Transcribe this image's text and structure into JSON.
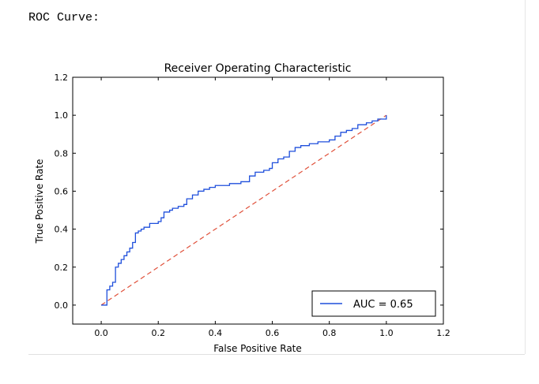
{
  "output": {
    "label": "ROC Curve:"
  },
  "chart_data": {
    "type": "line",
    "title": "Receiver Operating Characteristic",
    "xlabel": "False Positive Rate",
    "ylabel": "True Positive Rate",
    "xlim": [
      -0.1,
      1.2
    ],
    "ylim": [
      -0.1,
      1.2
    ],
    "x_ticks": [
      "0.0",
      "0.2",
      "0.4",
      "0.6",
      "0.8",
      "1.0",
      "1.2"
    ],
    "y_ticks": [
      "0.0",
      "0.2",
      "0.4",
      "0.6",
      "0.8",
      "1.0",
      "1.2"
    ],
    "legend_position": "bottom-right",
    "grid": false,
    "series": [
      {
        "name": "AUC = 0.65",
        "color": "#1f4fdc",
        "style": "solid",
        "x": [
          0.0,
          0.02,
          0.02,
          0.03,
          0.03,
          0.04,
          0.05,
          0.05,
          0.06,
          0.07,
          0.08,
          0.09,
          0.1,
          0.11,
          0.12,
          0.13,
          0.14,
          0.15,
          0.17,
          0.18,
          0.2,
          0.21,
          0.22,
          0.24,
          0.25,
          0.27,
          0.29,
          0.3,
          0.32,
          0.34,
          0.36,
          0.38,
          0.4,
          0.42,
          0.45,
          0.47,
          0.49,
          0.5,
          0.52,
          0.54,
          0.56,
          0.57,
          0.59,
          0.6,
          0.62,
          0.64,
          0.66,
          0.68,
          0.7,
          0.73,
          0.76,
          0.78,
          0.8,
          0.82,
          0.84,
          0.86,
          0.88,
          0.9,
          0.93,
          0.95,
          0.97,
          1.0
        ],
        "y": [
          0.0,
          0.03,
          0.08,
          0.09,
          0.1,
          0.12,
          0.15,
          0.2,
          0.22,
          0.24,
          0.26,
          0.28,
          0.3,
          0.33,
          0.38,
          0.39,
          0.4,
          0.41,
          0.43,
          0.43,
          0.44,
          0.46,
          0.49,
          0.5,
          0.51,
          0.52,
          0.53,
          0.56,
          0.58,
          0.6,
          0.61,
          0.62,
          0.63,
          0.63,
          0.64,
          0.64,
          0.65,
          0.65,
          0.68,
          0.7,
          0.7,
          0.71,
          0.72,
          0.75,
          0.77,
          0.78,
          0.81,
          0.83,
          0.84,
          0.85,
          0.86,
          0.86,
          0.87,
          0.89,
          0.91,
          0.92,
          0.93,
          0.95,
          0.96,
          0.97,
          0.98,
          1.0
        ]
      },
      {
        "name": "",
        "color": "#e0503a",
        "style": "dashed",
        "x": [
          0,
          1
        ],
        "y": [
          0,
          1
        ]
      }
    ]
  }
}
